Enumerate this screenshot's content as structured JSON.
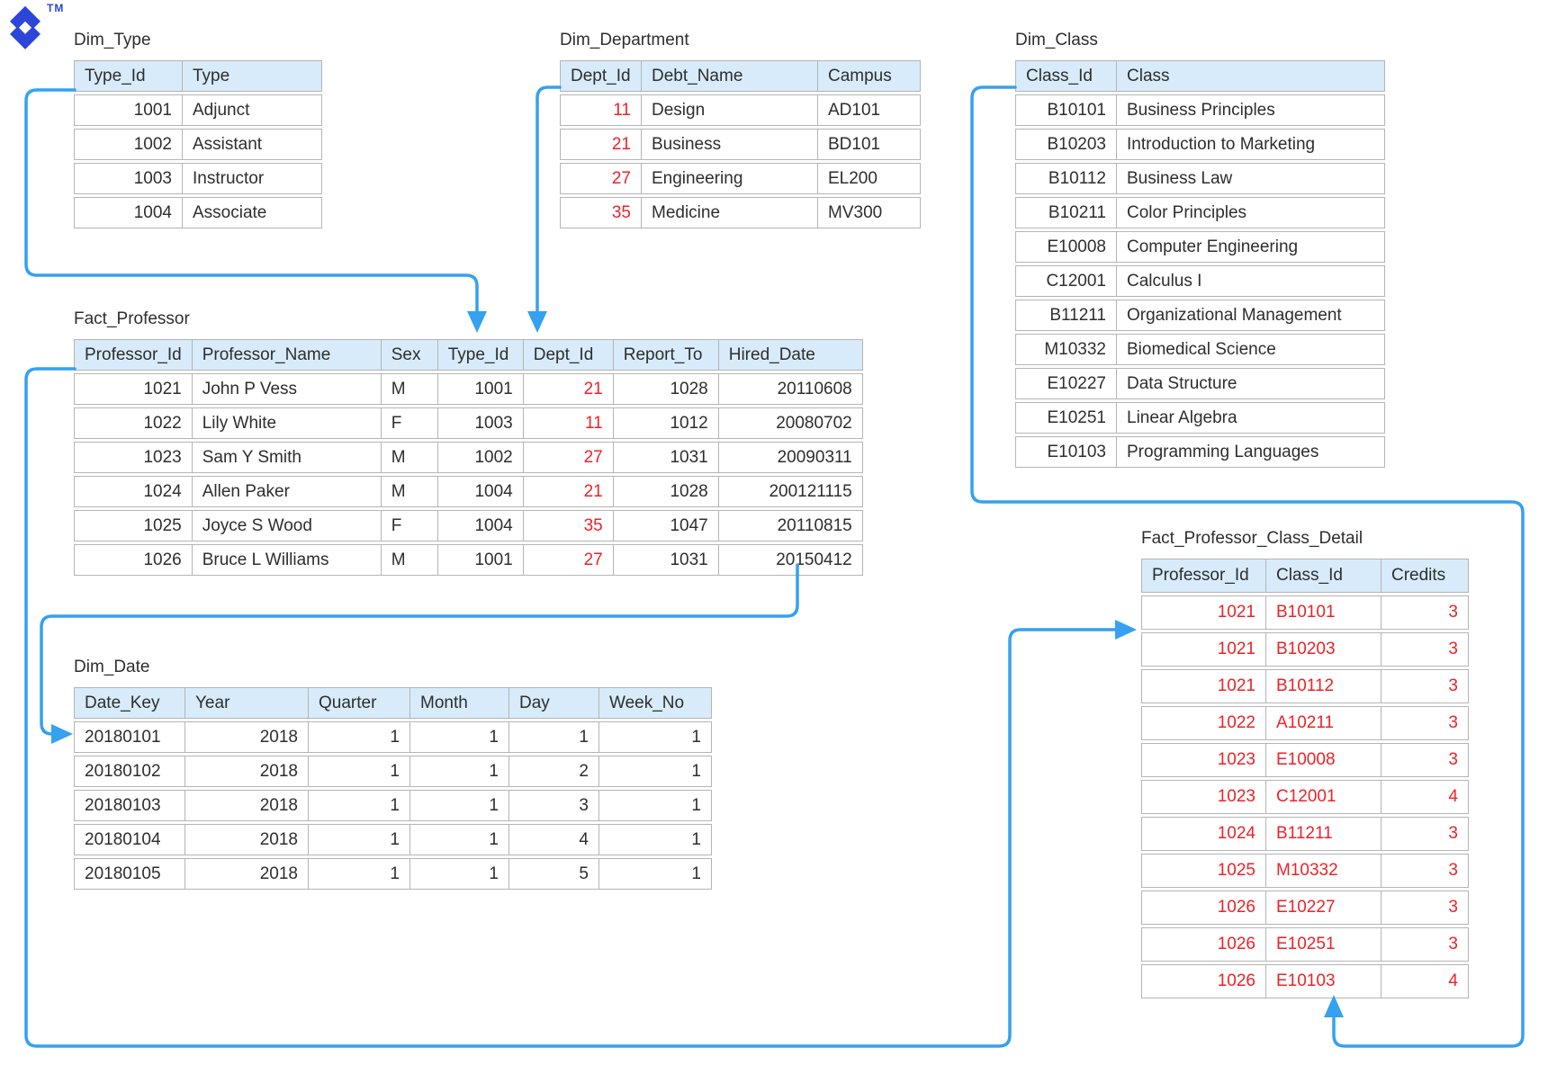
{
  "brand": {
    "trademark": "TM"
  },
  "colors": {
    "arrow": "#35a1f0",
    "header_bg": "#d7ebfa",
    "red_text": "#ee2228",
    "border": "#b5b5b5",
    "logo": "#2b46d9",
    "text": "#2e2e2e",
    "bg": "#ffffff"
  },
  "tables": {
    "dim_type": {
      "title": "Dim_Type",
      "columns": [
        {
          "label": "Type_Id",
          "align": "right",
          "red": false
        },
        {
          "label": "Type",
          "align": "left",
          "red": false
        }
      ],
      "rows": [
        [
          "1001",
          "Adjunct"
        ],
        [
          "1002",
          "Assistant"
        ],
        [
          "1003",
          "Instructor"
        ],
        [
          "1004",
          "Associate"
        ]
      ]
    },
    "dim_department": {
      "title": "Dim_Department",
      "columns": [
        {
          "label": "Dept_Id",
          "align": "right",
          "red": true
        },
        {
          "label": "Debt_Name",
          "align": "left",
          "red": false
        },
        {
          "label": "Campus",
          "align": "left",
          "red": false
        }
      ],
      "rows": [
        [
          "11",
          "Design",
          "AD101"
        ],
        [
          "21",
          "Business",
          "BD101"
        ],
        [
          "27",
          "Engineering",
          "EL200"
        ],
        [
          "35",
          "Medicine",
          "MV300"
        ]
      ]
    },
    "dim_class": {
      "title": "Dim_Class",
      "columns": [
        {
          "label": "Class_Id",
          "align": "right",
          "red": false
        },
        {
          "label": "Class",
          "align": "left",
          "red": false
        }
      ],
      "rows": [
        [
          "B10101",
          "Business Principles"
        ],
        [
          "B10203",
          "Introduction to Marketing"
        ],
        [
          "B10112",
          "Business Law"
        ],
        [
          "B10211",
          "Color Principles"
        ],
        [
          "E10008",
          "Computer Engineering"
        ],
        [
          "C12001",
          "Calculus I"
        ],
        [
          "B11211",
          "Organizational Management"
        ],
        [
          "M10332",
          "Biomedical Science"
        ],
        [
          "E10227",
          "Data Structure"
        ],
        [
          "E10251",
          "Linear Algebra"
        ],
        [
          "E10103",
          "Programming Languages"
        ]
      ]
    },
    "fact_professor": {
      "title": "Fact_Professor",
      "columns": [
        {
          "label": "Professor_Id",
          "align": "right",
          "red": false
        },
        {
          "label": "Professor_Name",
          "align": "left",
          "red": false
        },
        {
          "label": "Sex",
          "align": "left",
          "red": false
        },
        {
          "label": "Type_Id",
          "align": "right",
          "red": false
        },
        {
          "label": "Dept_Id",
          "align": "right",
          "red": true
        },
        {
          "label": "Report_To",
          "align": "right",
          "red": false
        },
        {
          "label": "Hired_Date",
          "align": "right",
          "red": false
        }
      ],
      "rows": [
        [
          "1021",
          "John P Vess",
          "M",
          "1001",
          "21",
          "1028",
          "20110608"
        ],
        [
          "1022",
          "Lily White",
          "F",
          "1003",
          "11",
          "1012",
          "20080702"
        ],
        [
          "1023",
          "Sam Y Smith",
          "M",
          "1002",
          "27",
          "1031",
          "20090311"
        ],
        [
          "1024",
          "Allen Paker",
          "M",
          "1004",
          "21",
          "1028",
          "200121115"
        ],
        [
          "1025",
          "Joyce S Wood",
          "F",
          "1004",
          "35",
          "1047",
          "20110815"
        ],
        [
          "1026",
          "Bruce L Williams",
          "M",
          "1001",
          "27",
          "1031",
          "20150412"
        ]
      ]
    },
    "dim_date": {
      "title": "Dim_Date",
      "columns": [
        {
          "label": "Date_Key",
          "align": "left",
          "red": false
        },
        {
          "label": "Year",
          "align": "right",
          "red": false
        },
        {
          "label": "Quarter",
          "align": "right",
          "red": false
        },
        {
          "label": "Month",
          "align": "right",
          "red": false
        },
        {
          "label": "Day",
          "align": "right",
          "red": false
        },
        {
          "label": "Week_No",
          "align": "right",
          "red": false
        }
      ],
      "rows": [
        [
          "20180101",
          "2018",
          "1",
          "1",
          "1",
          "1"
        ],
        [
          "20180102",
          "2018",
          "1",
          "1",
          "2",
          "1"
        ],
        [
          "20180103",
          "2018",
          "1",
          "1",
          "3",
          "1"
        ],
        [
          "20180104",
          "2018",
          "1",
          "1",
          "4",
          "1"
        ],
        [
          "20180105",
          "2018",
          "1",
          "1",
          "5",
          "1"
        ]
      ]
    },
    "fact_professor_class_detail": {
      "title": "Fact_Professor_Class_Detail",
      "columns": [
        {
          "label": "Professor_Id",
          "align": "right",
          "red": true
        },
        {
          "label": "Class_Id",
          "align": "left",
          "red": true
        },
        {
          "label": "Credits",
          "align": "right",
          "red": true
        }
      ],
      "rows": [
        [
          "1021",
          "B10101",
          "3"
        ],
        [
          "1021",
          "B10203",
          "3"
        ],
        [
          "1021",
          "B10112",
          "3"
        ],
        [
          "1022",
          "A10211",
          "3"
        ],
        [
          "1023",
          "E10008",
          "3"
        ],
        [
          "1023",
          "C12001",
          "4"
        ],
        [
          "1024",
          "B11211",
          "3"
        ],
        [
          "1025",
          "M10332",
          "3"
        ],
        [
          "1026",
          "E10227",
          "3"
        ],
        [
          "1026",
          "E10251",
          "3"
        ],
        [
          "1026",
          "E10103",
          "4"
        ]
      ]
    }
  },
  "relationships": [
    {
      "from": "Dim_Type.Type_Id",
      "to": "Fact_Professor.Type_Id"
    },
    {
      "from": "Dim_Department.Dept_Id",
      "to": "Fact_Professor.Dept_Id"
    },
    {
      "from": "Dim_Class.Class_Id",
      "to": "Fact_Professor_Class_Detail.Class_Id"
    },
    {
      "from": "Fact_Professor.Hired_Date",
      "to": "Dim_Date.Date_Key"
    },
    {
      "from": "Fact_Professor.Professor_Id",
      "to": "Fact_Professor_Class_Detail.Professor_Id"
    }
  ]
}
